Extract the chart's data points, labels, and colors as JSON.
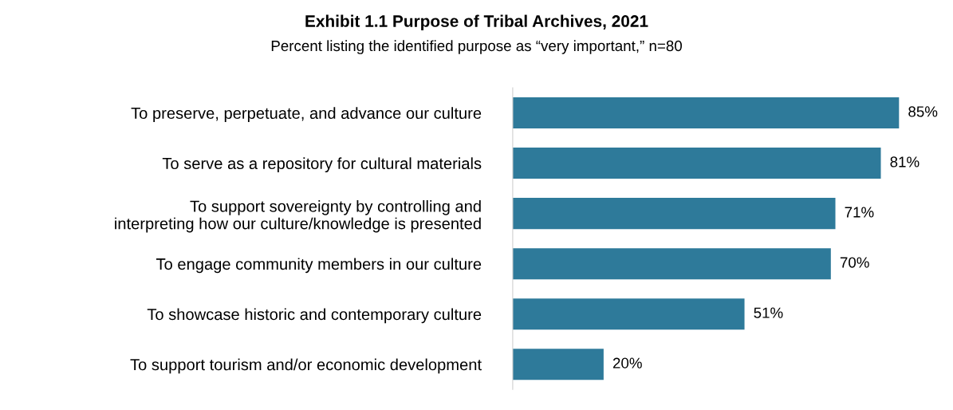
{
  "chart_data": {
    "type": "bar",
    "orientation": "horizontal",
    "title": "Exhibit 1.1 Purpose of Tribal Archives, 2021",
    "subtitle": "Percent listing the identified purpose as “very important,” n=80",
    "categories": [
      "To preserve, perpetuate, and advance our culture",
      "To serve as a repository for cultural materials",
      "To support sovereignty by controlling and\ninterpreting how our culture/knowledge is presented",
      "To engage community members in our culture",
      "To showcase historic and contemporary culture",
      "To support tourism and/or economic development"
    ],
    "values": [
      85,
      81,
      71,
      70,
      51,
      20
    ],
    "value_labels": [
      "85%",
      "81%",
      "71%",
      "70%",
      "51%",
      "20%"
    ],
    "color": "#2e7a9a",
    "tick_labels": "y",
    "grid": false,
    "legend": false
  }
}
